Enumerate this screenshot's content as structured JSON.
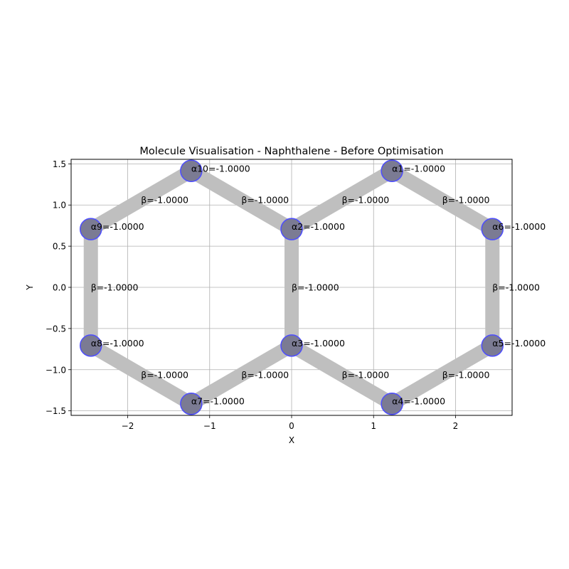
{
  "chart_data": {
    "type": "scatter",
    "title": "Molecule Visualisation - Naphthalene - Before Optimisation",
    "xlabel": "X",
    "ylabel": "Y",
    "xlim": [
      -2.69,
      2.69
    ],
    "ylim": [
      -1.555,
      1.555
    ],
    "xticks": [
      -2,
      -1,
      0,
      1,
      2
    ],
    "xtick_labels": [
      "−2",
      "−1",
      "0",
      "1",
      "2"
    ],
    "yticks": [
      -1.5,
      -1.0,
      -0.5,
      0.0,
      0.5,
      1.0,
      1.5
    ],
    "ytick_labels": [
      "−1.5",
      "−1.0",
      "−0.5",
      "0.0",
      "0.5",
      "1.0",
      "1.5"
    ],
    "grid": true,
    "colors": {
      "bond": "#bfbfbf",
      "atom_fill": "#7b7b93",
      "atom_edge": "#4d4dff",
      "grid": "#b0b0b0"
    },
    "atoms": [
      {
        "x": 1.2247,
        "y": 1.4142,
        "label": "α1=-1.0000"
      },
      {
        "x": 0.0,
        "y": 0.7071,
        "label": "α2=-1.0000"
      },
      {
        "x": 0.0,
        "y": -0.7071,
        "label": "α3=-1.0000"
      },
      {
        "x": 1.2247,
        "y": -1.4142,
        "label": "α4=-1.0000"
      },
      {
        "x": 2.4495,
        "y": -0.7071,
        "label": "α5=-1.0000"
      },
      {
        "x": 2.4495,
        "y": 0.7071,
        "label": "α6=-1.0000"
      },
      {
        "x": -1.2247,
        "y": -1.4142,
        "label": "α7=-1.0000"
      },
      {
        "x": -2.4495,
        "y": -0.7071,
        "label": "α8=-1.0000"
      },
      {
        "x": -2.4495,
        "y": 0.7071,
        "label": "α9=-1.0000"
      },
      {
        "x": -1.2247,
        "y": 1.4142,
        "label": "α10=-1.0000"
      }
    ],
    "bonds": [
      {
        "from": 0,
        "to": 1,
        "label": "β=-1.0000"
      },
      {
        "from": 1,
        "to": 2,
        "label": "β=-1.0000"
      },
      {
        "from": 2,
        "to": 3,
        "label": "β=-1.0000"
      },
      {
        "from": 3,
        "to": 4,
        "label": "β=-1.0000"
      },
      {
        "from": 4,
        "to": 5,
        "label": "β=-1.0000"
      },
      {
        "from": 5,
        "to": 0,
        "label": "β=-1.0000"
      },
      {
        "from": 2,
        "to": 6,
        "label": "β=-1.0000"
      },
      {
        "from": 6,
        "to": 7,
        "label": "β=-1.0000"
      },
      {
        "from": 7,
        "to": 8,
        "label": "β=-1.0000"
      },
      {
        "from": 8,
        "to": 9,
        "label": "β=-1.0000"
      },
      {
        "from": 9,
        "to": 1,
        "label": "β=-1.0000"
      }
    ]
  }
}
